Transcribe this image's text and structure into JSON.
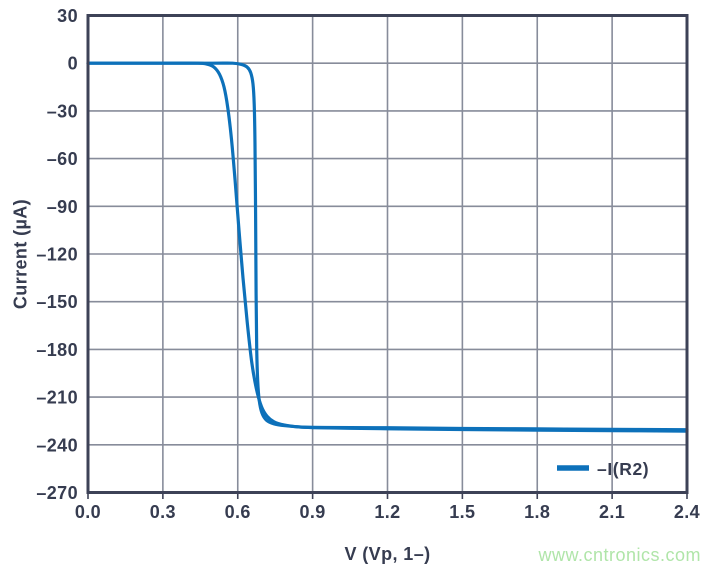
{
  "watermark": {
    "text": "www.cntronics.com",
    "color": "#b0e5a9"
  },
  "chart_data": {
    "type": "line",
    "title": "",
    "xlabel": "V (Vp, 1–)",
    "ylabel": "Current (µA)",
    "xlim": [
      0,
      2.4
    ],
    "ylim": [
      -270,
      30
    ],
    "xticks": [
      0,
      0.3,
      0.6,
      0.9,
      1.2,
      1.5,
      1.8,
      2.1,
      2.4
    ],
    "xtick_labels": [
      "0.0",
      "0.3",
      "0.6",
      "0.9",
      "1.2",
      "1.5",
      "1.8",
      "2.1",
      "2.4"
    ],
    "yticks": [
      30,
      0,
      -30,
      -60,
      -90,
      -120,
      -150,
      -180,
      -210,
      -240,
      -270
    ],
    "ytick_labels": [
      "30",
      "0",
      "–30",
      "–60",
      "–90",
      "–120",
      "–150",
      "–180",
      "–210",
      "–240",
      "–270"
    ],
    "grid": true,
    "colors": {
      "grid": "#878c9a",
      "frame": "#3d4257",
      "text": "#363c50",
      "curve": "#0d71ba"
    },
    "legend": {
      "position": "bottom-right-inside",
      "entries": [
        {
          "label": "–I(R2)",
          "color": "#0d71ba"
        }
      ]
    },
    "series": [
      {
        "name": "–I(R2)",
        "color": "#0d71ba",
        "stroke_width": 3.2,
        "sweeps": [
          [
            [
              0,
              0
            ],
            [
              0.3,
              0
            ],
            [
              0.44,
              0
            ],
            [
              0.48,
              -0.7
            ],
            [
              0.505,
              -2.5
            ],
            [
              0.527,
              -7
            ],
            [
              0.545,
              -15
            ],
            [
              0.56,
              -28
            ],
            [
              0.575,
              -48
            ],
            [
              0.59,
              -75
            ],
            [
              0.605,
              -105
            ],
            [
              0.621,
              -135
            ],
            [
              0.638,
              -163
            ],
            [
              0.656,
              -188
            ],
            [
              0.675,
              -205
            ],
            [
              0.695,
              -216
            ],
            [
              0.717,
              -222
            ],
            [
              0.745,
              -225.5
            ],
            [
              0.785,
              -227.5
            ],
            [
              0.84,
              -228.7
            ],
            [
              0.9,
              -229.2
            ],
            [
              1.05,
              -229.6
            ],
            [
              1.2,
              -229.9
            ],
            [
              1.5,
              -230.4
            ],
            [
              1.8,
              -230.8
            ],
            [
              2.1,
              -231.1
            ],
            [
              2.4,
              -231.4
            ]
          ],
          [
            [
              0,
              0
            ],
            [
              0.3,
              0
            ],
            [
              0.5,
              0
            ],
            [
              0.58,
              0
            ],
            [
              0.615,
              -0.8
            ],
            [
              0.638,
              -2.5
            ],
            [
              0.652,
              -6
            ],
            [
              0.661,
              -13
            ],
            [
              0.666,
              -26
            ],
            [
              0.669,
              -50
            ],
            [
              0.6715,
              -95
            ],
            [
              0.6735,
              -145
            ],
            [
              0.676,
              -180
            ],
            [
              0.68,
              -200
            ],
            [
              0.686,
              -212
            ],
            [
              0.697,
              -220
            ],
            [
              0.715,
              -224.5
            ],
            [
              0.745,
              -226.8
            ],
            [
              0.79,
              -228
            ],
            [
              0.85,
              -228.8
            ],
            [
              0.95,
              -229.1
            ],
            [
              1.2,
              -229.3
            ],
            [
              1.5,
              -229.7
            ],
            [
              1.8,
              -230
            ],
            [
              2.1,
              -230.3
            ],
            [
              2.4,
              -230.5
            ]
          ]
        ]
      }
    ]
  }
}
